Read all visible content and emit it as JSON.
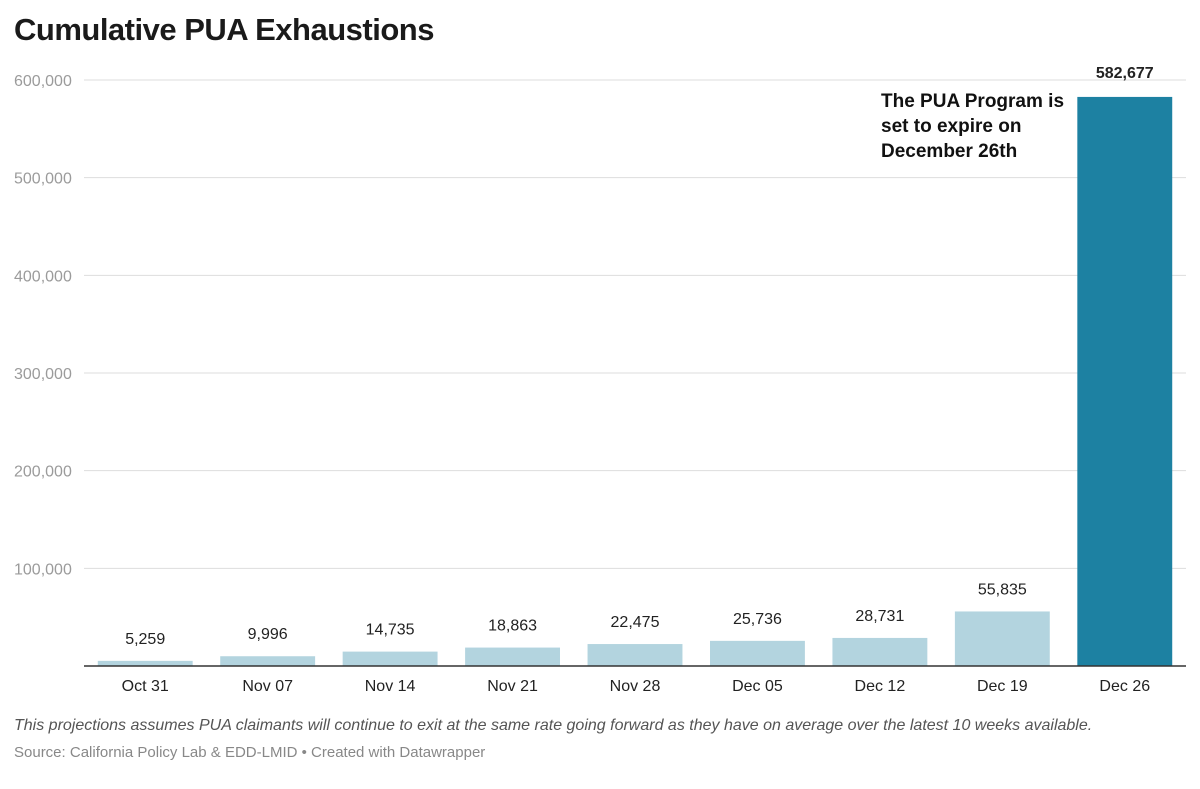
{
  "chart_data": {
    "type": "bar",
    "title": "Cumulative PUA Exhaustions",
    "categories": [
      "Oct 31",
      "Nov 07",
      "Nov 14",
      "Nov 21",
      "Nov 28",
      "Dec 05",
      "Dec 12",
      "Dec 19",
      "Dec 26"
    ],
    "values": [
      5259,
      9996,
      14735,
      18863,
      22475,
      25736,
      28731,
      55835,
      582677
    ],
    "value_labels": [
      "5,259",
      "9,996",
      "14,735",
      "18,863",
      "22,475",
      "25,736",
      "28,731",
      "55,835",
      "582,677"
    ],
    "highlight_index": 8,
    "ylim": [
      0,
      600000
    ],
    "yticks": [
      100000,
      200000,
      300000,
      400000,
      500000,
      600000
    ],
    "ytick_labels": [
      "100,000",
      "200,000",
      "300,000",
      "400,000",
      "500,000",
      "600,000"
    ],
    "grid": true,
    "colors": {
      "bar": "#b3d4df",
      "highlight": "#1d81a2",
      "grid": "#dddddd",
      "axis": "#333333"
    },
    "annotation": [
      "The PUA Program is",
      "set to expire on",
      "December 26th"
    ]
  },
  "footer": {
    "note": "This projections assumes PUA claimants will continue to exit at the same rate going forward as they have on average over the latest 10 weeks available.",
    "source": "Source: California Policy Lab & EDD-LMID • Created with Datawrapper"
  }
}
